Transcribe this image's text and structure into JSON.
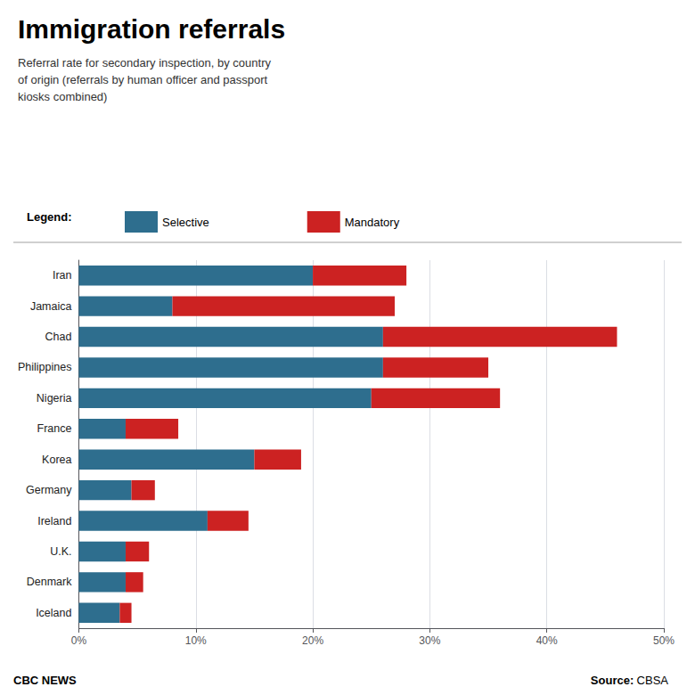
{
  "chart_data": {
    "type": "bar",
    "orientation": "horizontal",
    "stacked": true,
    "title": "Immigration referrals",
    "subtitle": "Referral rate for secondary inspection, by country\nof origin (referrals by human officer and passport\nkiosks combined)",
    "categories": [
      "Iran",
      "Jamaica",
      "Chad",
      "Philippines",
      "Nigeria",
      "France",
      "Korea",
      "Germany",
      "Ireland",
      "U.K.",
      "Denmark",
      "Iceland"
    ],
    "series": [
      {
        "name": "Selective",
        "color": "#2E6E8E",
        "values": [
          20,
          8,
          26,
          26,
          25,
          4,
          15,
          4.5,
          11,
          4,
          4,
          3.5
        ]
      },
      {
        "name": "Mandatory",
        "color": "#CC2222",
        "values": [
          8,
          19,
          20,
          9,
          11,
          4.5,
          4,
          2,
          3.5,
          2,
          1.5,
          1
        ]
      }
    ],
    "xlim": [
      0,
      50
    ],
    "xticks": [
      {
        "value": 0,
        "label": "0%"
      },
      {
        "value": 10,
        "label": "10%"
      },
      {
        "value": 20,
        "label": "20%"
      },
      {
        "value": 30,
        "label": "30%"
      },
      {
        "value": 40,
        "label": "40%"
      },
      {
        "value": 50,
        "label": "50%"
      }
    ],
    "grid": true,
    "legend": "top left",
    "annotations": [
      "Legend:",
      "CBC NEWS",
      "Source:",
      "CBSA"
    ]
  }
}
